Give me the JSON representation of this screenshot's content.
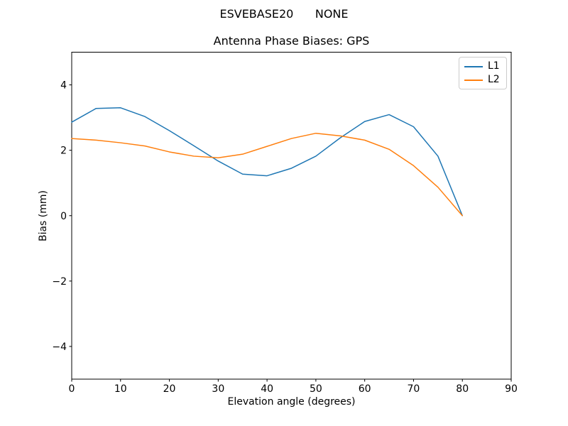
{
  "chart_data": {
    "type": "line",
    "suptitle": "ESVEBASE20      NONE",
    "title": "Antenna Phase Biases: GPS",
    "xlabel": "Elevation angle (degrees)",
    "ylabel": "Bias (mm)",
    "xlim": [
      0,
      90
    ],
    "ylim": [
      -5,
      5
    ],
    "xticks": [
      0,
      10,
      20,
      30,
      40,
      50,
      60,
      70,
      80,
      90
    ],
    "yticks": [
      -4,
      -2,
      0,
      2,
      4
    ],
    "grid": false,
    "legend_position": "upper right",
    "x": [
      0,
      5,
      10,
      15,
      20,
      25,
      30,
      35,
      40,
      45,
      50,
      55,
      60,
      65,
      70,
      75,
      80
    ],
    "series": [
      {
        "name": "L1",
        "color": "#1f77b4",
        "values": [
          2.86,
          3.28,
          3.3,
          3.03,
          2.6,
          2.14,
          1.67,
          1.27,
          1.22,
          1.45,
          1.82,
          2.38,
          2.88,
          3.09,
          2.72,
          1.82,
          0.0
        ]
      },
      {
        "name": "L2",
        "color": "#ff7f0e",
        "values": [
          2.36,
          2.31,
          2.23,
          2.13,
          1.95,
          1.82,
          1.77,
          1.88,
          2.12,
          2.36,
          2.52,
          2.44,
          2.31,
          2.03,
          1.53,
          0.87,
          0.0
        ]
      }
    ]
  }
}
